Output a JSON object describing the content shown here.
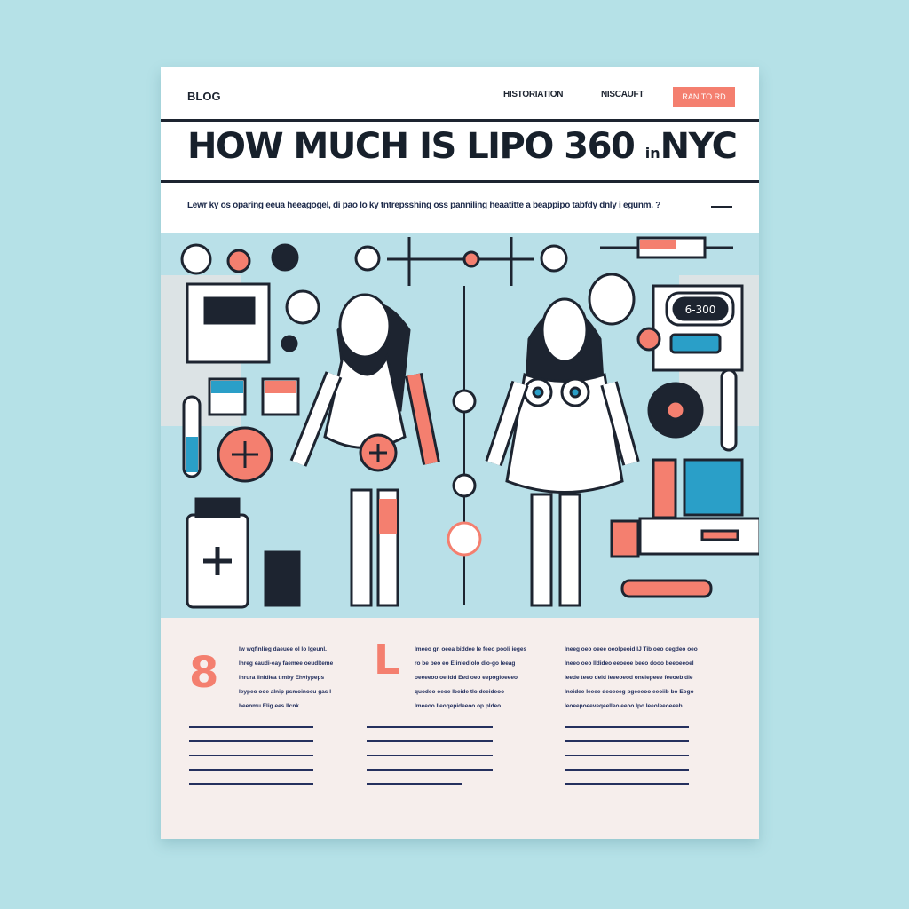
{
  "header": {
    "logo": "BLOG",
    "nav": [
      "HISTORIATION",
      "NISCAUFT"
    ],
    "cta": "RAN TO RD"
  },
  "title": {
    "main": "HOW MUCH IS LIPO 360",
    "small": "in",
    "end": "NYC"
  },
  "subtitle": "Lewr ky os oparing eeua heeagogel, di pao lo ky tntrepsshing oss panniling heaatitte a beappipo tabfdy dnly i egunm. ?",
  "illustration": {
    "device_readout": "6-300"
  },
  "columns": [
    {
      "initial": "8",
      "lines": [
        "Iw wqfinlieg daeuee ol lo lgeunl.",
        "Ihreg eaudi-eay faemee oeudlteme",
        "Inrura Iinldiea timby Ehvlypeps",
        "Ieypeo ooe alnip psmoinoeu gas I",
        "beenmu Elig ees Ilcnk."
      ]
    },
    {
      "initial": "L",
      "lines": [
        "Imeeo gn oeea biddee Ie feeo pooli ieges",
        "ro be beo eo Elinlediolo dio-go Ieeag",
        "oeeeeoo oeiidd Eed oeo eepogioeeeo",
        "quodeo oeoe lbeide tlo deeideoo",
        "Imeeoo Ileoqepideeoo op pldeo..."
      ]
    },
    {
      "initial": "",
      "lines": [
        "Ineeg oeo oeee oeolpeoid IJ Tib oeo oegdeo oeo",
        "Ineeo oeo Ildideo eeoeoe beeo dooo beeoeeoel",
        "Ieede teeo deid Ieeeoeod onelepeee feeoeb die",
        "Ineidee Ieeee deoeeeg pgeeeoo eeoiib bo Eogo",
        "Ieoeepoeeveqeelleo eeoo Ipo Ieeoleeoeeeb"
      ]
    }
  ],
  "colors": {
    "background": "#b5e1e7",
    "accent": "#f47f6f",
    "dark": "#1d2430",
    "blue": "#2a9fc8",
    "panel": "#b9e0e8",
    "bottom": "#f6eeec"
  }
}
